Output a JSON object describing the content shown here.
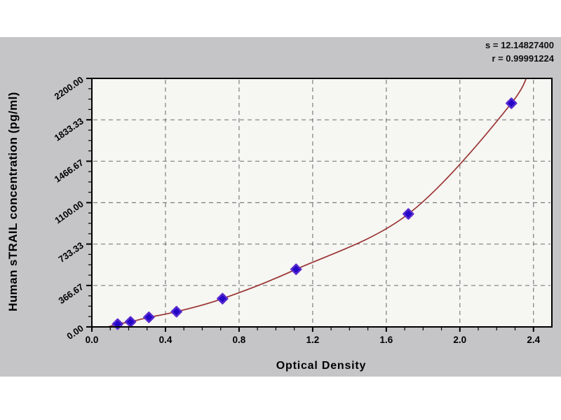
{
  "window": {
    "background_color": "#ffffff",
    "panel_color": "#c5c5c7",
    "plot_background_color": "#f6f6f2"
  },
  "stats": {
    "s_line": "s = 12.14827400",
    "r_line": "r = 0.99991224"
  },
  "chart_data": {
    "type": "scatter",
    "title": "",
    "xlabel": "Optical Density",
    "ylabel": "Human sTRAIL  concentration (pg/ml)",
    "xlim": [
      0,
      2.5
    ],
    "ylim": [
      0,
      2200
    ],
    "grid": "dashed",
    "grid_color": "#7d7d7d",
    "legend": "none",
    "x_ticks": {
      "values": [
        0.0,
        0.4,
        0.8,
        1.2,
        1.6,
        2.0,
        2.4
      ],
      "labels": [
        "0.0",
        "0.4",
        "0.8",
        "1.2",
        "1.6",
        "2.0",
        "2.4"
      ],
      "minor_step": 0.1
    },
    "y_ticks": {
      "values": [
        0,
        366.67,
        733.33,
        1100,
        1466.67,
        1833.33,
        2200
      ],
      "labels": [
        "0.00",
        "366.67",
        "733.33",
        "1100.00",
        "1466.67",
        "1833.33",
        "2200.00"
      ],
      "minor_step": 91.667
    },
    "series": [
      {
        "name": "standard-points",
        "type": "scatter",
        "marker": "diamond",
        "color": "#2306c6",
        "edge_color": "#5a2bd0",
        "x": [
          0.14,
          0.21,
          0.31,
          0.46,
          0.71,
          1.11,
          1.72,
          2.28
        ],
        "y": [
          25,
          45,
          85,
          135,
          250,
          510,
          1000,
          1980
        ]
      },
      {
        "name": "fit-curve",
        "type": "line",
        "color": "#9a3333",
        "x": [
          0.07,
          0.14,
          0.21,
          0.31,
          0.46,
          0.71,
          1.11,
          1.72,
          2.28,
          2.38
        ],
        "y": [
          -10,
          25,
          45,
          85,
          135,
          250,
          510,
          1000,
          1980,
          2350
        ]
      }
    ],
    "annotations": {
      "s": "12.14827400",
      "r": "0.99991224"
    }
  }
}
